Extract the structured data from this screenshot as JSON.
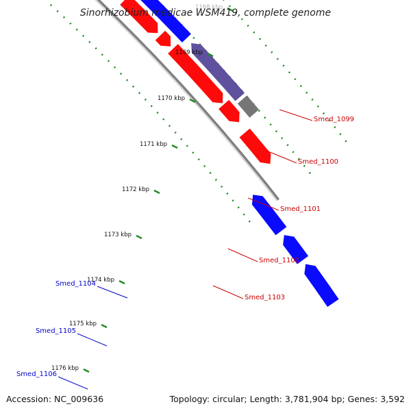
{
  "title": "Sinorhizobium medicae WSM419, complete genome",
  "accession": "Accession: NC_009636",
  "topology": "Topology: circular; Length: 3,781,904 bp; Genes: 3,592",
  "ticks": [
    {
      "label": "1168 kbp",
      "faded": true
    },
    {
      "label": "1169 kbp"
    },
    {
      "label": "1170 kbp"
    },
    {
      "label": "1171 kbp"
    },
    {
      "label": "1172 kbp"
    },
    {
      "label": "1173 kbp"
    },
    {
      "label": "1174 kbp"
    },
    {
      "label": "1175 kbp"
    },
    {
      "label": "1176 kbp"
    }
  ],
  "genes_right": [
    {
      "label": "Smed_1099"
    },
    {
      "label": "Smed_1100"
    },
    {
      "label": "Smed_1101"
    },
    {
      "label": "Smed_1102"
    },
    {
      "label": "Smed_1103"
    }
  ],
  "genes_left": [
    {
      "label": "Smed_1104"
    },
    {
      "label": "Smed_1105"
    },
    {
      "label": "Smed_1106"
    }
  ],
  "colors": {
    "forward_cds": "#ff0000",
    "reverse_cds": "#0000ff",
    "other_feature": "#5a4a9a",
    "grey_feature": "#707070",
    "backbone": "#808080",
    "scale_dots": "#228b22",
    "label_right": "#cc0000",
    "label_left": "#0000cc"
  }
}
